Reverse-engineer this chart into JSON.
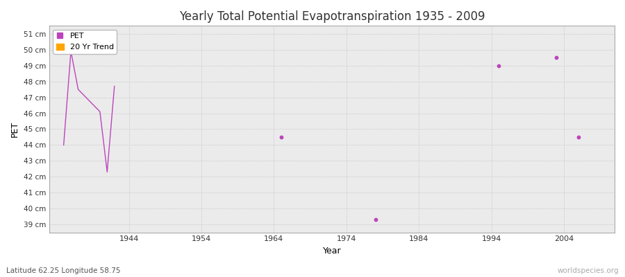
{
  "title": "Yearly Total Potential Evapotranspiration 1935 - 2009",
  "xlabel": "Year",
  "ylabel": "PET",
  "subtitle": "Latitude 62.25 Longitude 58.75",
  "watermark": "worldspecies.org",
  "ylim": [
    38.5,
    51.5
  ],
  "xlim": [
    1933,
    2011
  ],
  "yticks": [
    39,
    40,
    41,
    42,
    43,
    44,
    45,
    46,
    47,
    48,
    49,
    50,
    51
  ],
  "ytick_labels": [
    "39 cm",
    "40 cm",
    "41 cm",
    "42 cm",
    "43 cm",
    "44 cm",
    "45 cm",
    "46 cm",
    "47 cm",
    "48 cm",
    "49 cm",
    "50 cm",
    "51 cm"
  ],
  "xticks": [
    1944,
    1954,
    1964,
    1974,
    1984,
    1994,
    2004
  ],
  "pet_color": "#bb44bb",
  "trend_color": "#ffa500",
  "fig_bg_color": "#ffffff",
  "plot_bg_color": "#ebebeb",
  "grid_color": "#cccccc",
  "connected_data": [
    [
      1935,
      44.0
    ],
    [
      1936,
      49.9
    ],
    [
      1937,
      47.5
    ],
    [
      1940,
      46.1
    ],
    [
      1941,
      42.3
    ],
    [
      1942,
      47.7
    ]
  ],
  "isolated_data": [
    [
      1965,
      44.5
    ],
    [
      1978,
      39.3
    ],
    [
      1995,
      49.0
    ],
    [
      2003,
      49.5
    ],
    [
      2006,
      44.5
    ]
  ]
}
